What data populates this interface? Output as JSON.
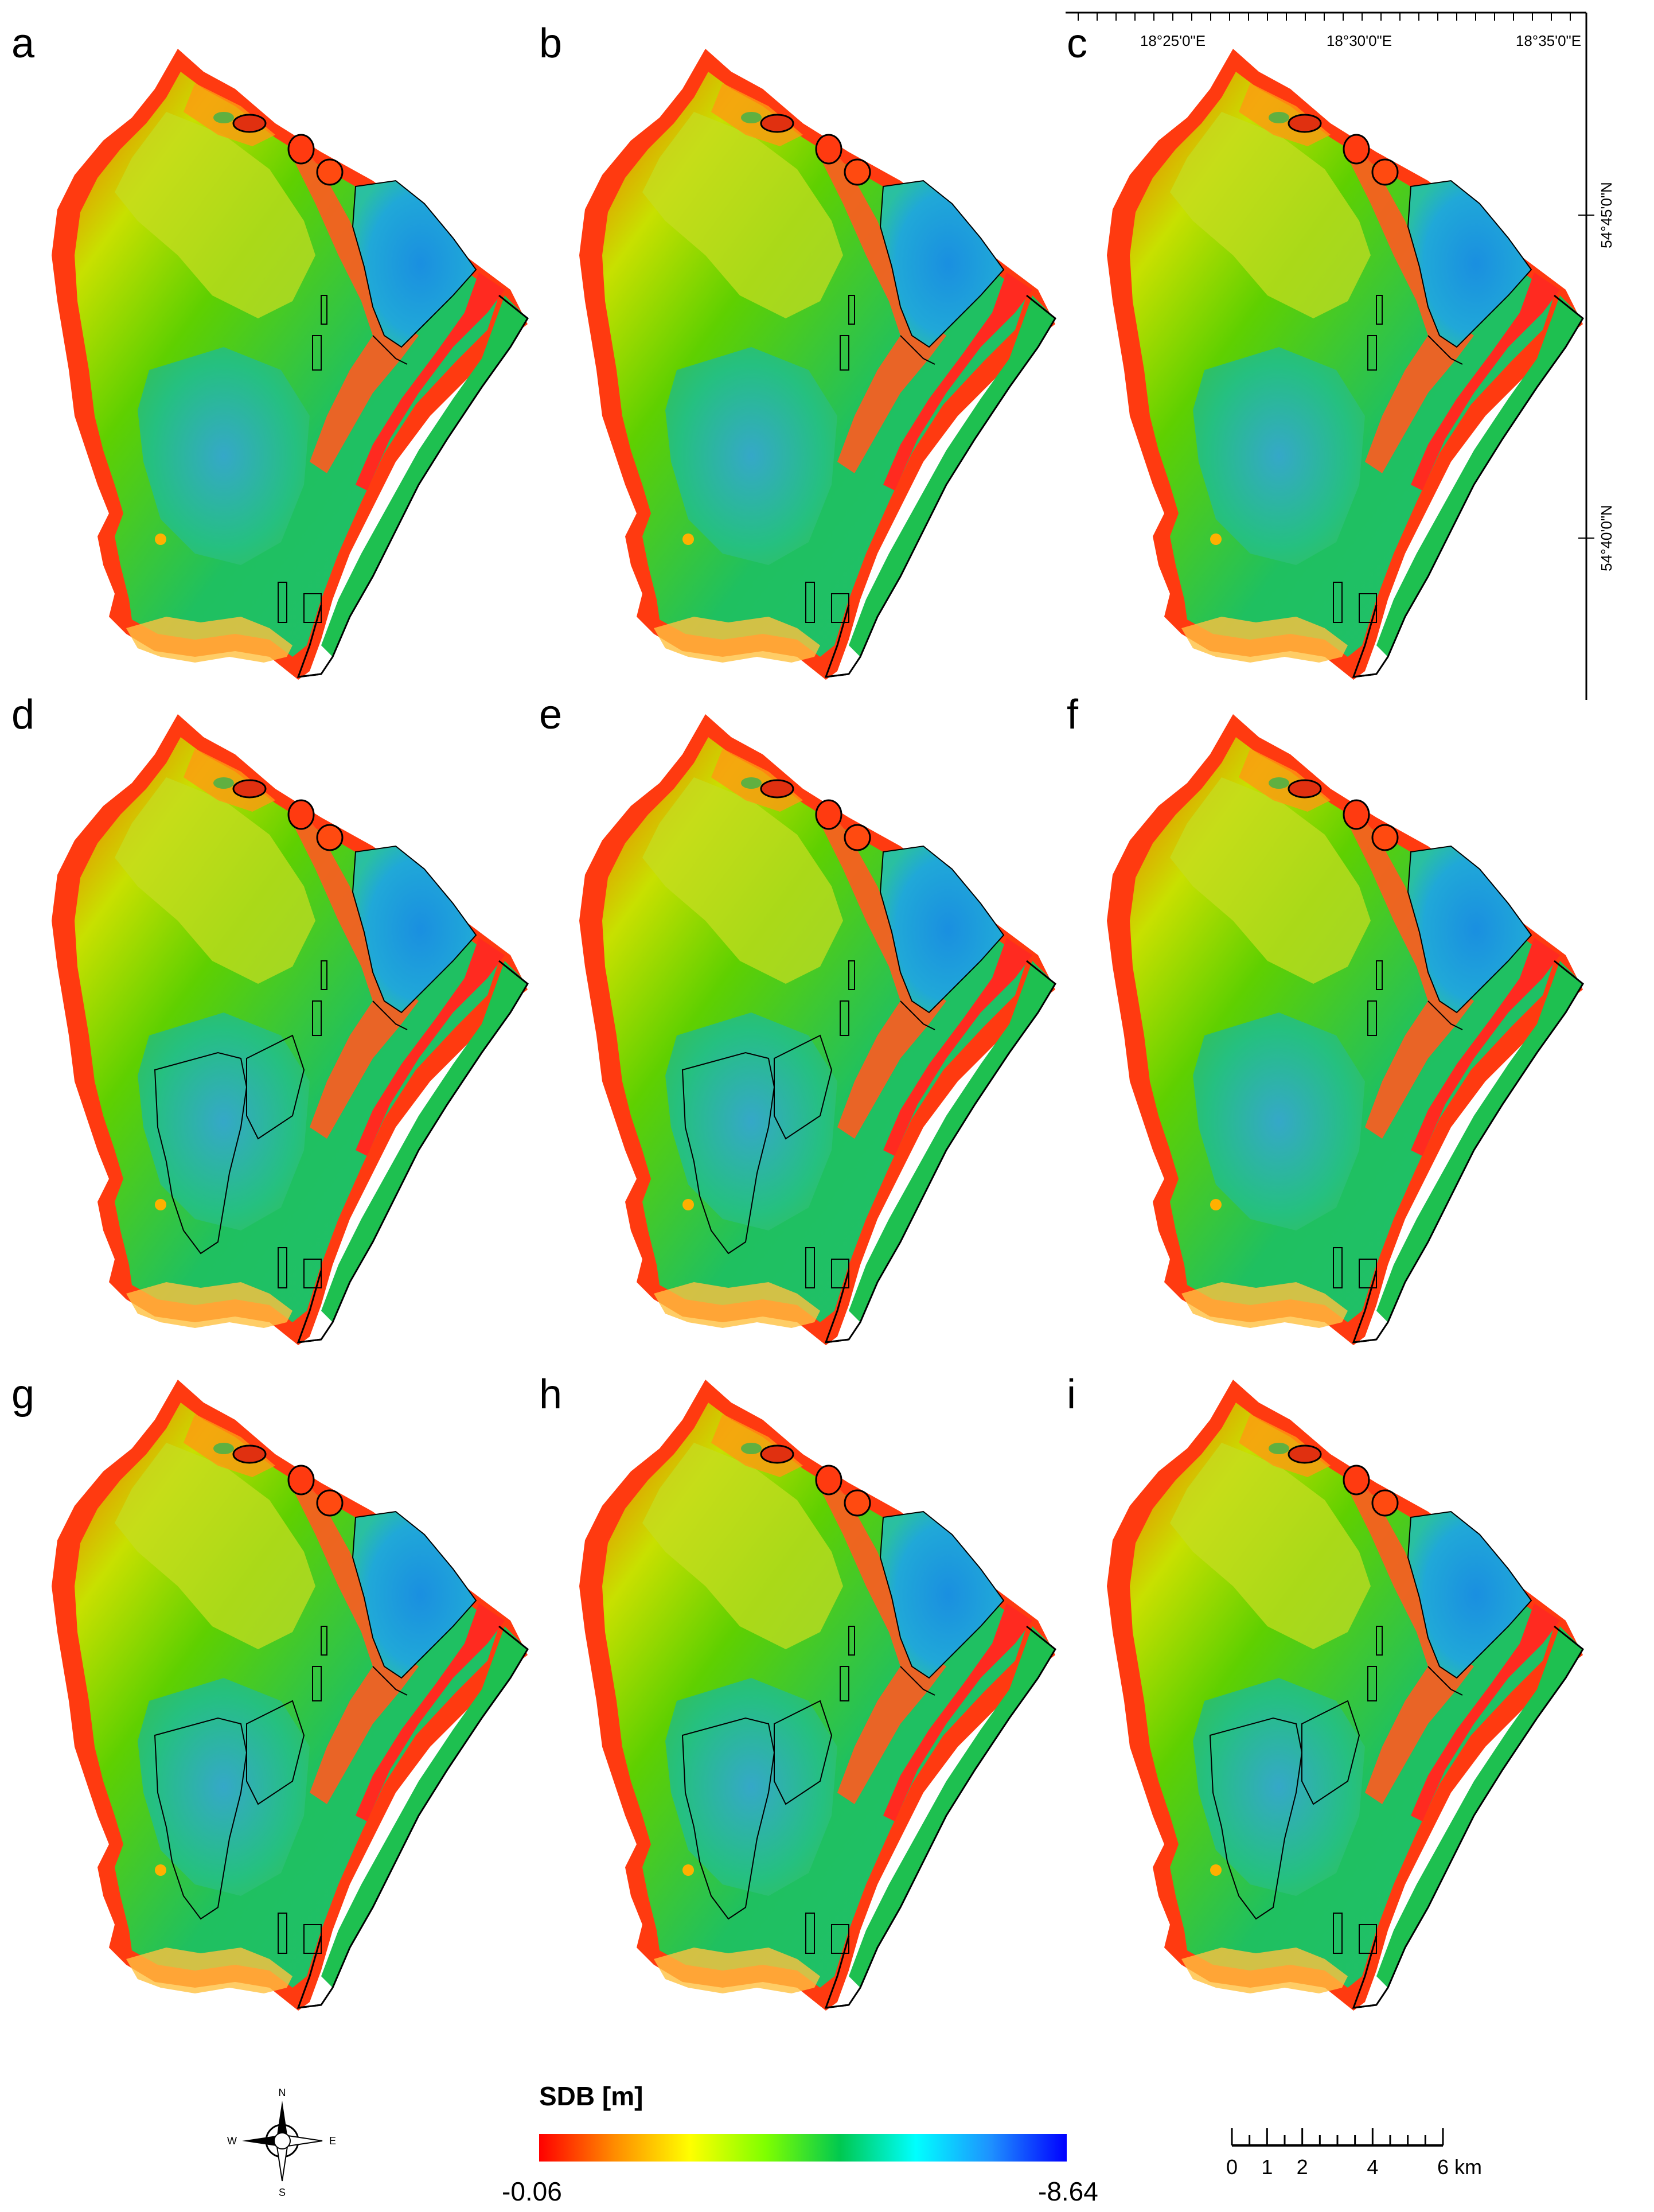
{
  "panels": [
    {
      "id": "a",
      "label": "a",
      "extra_polygons": false
    },
    {
      "id": "b",
      "label": "b",
      "extra_polygons": false
    },
    {
      "id": "c",
      "label": "c",
      "extra_polygons": false
    },
    {
      "id": "d",
      "label": "d",
      "extra_polygons": true
    },
    {
      "id": "e",
      "label": "e",
      "extra_polygons": true
    },
    {
      "id": "f",
      "label": "f",
      "extra_polygons": false
    },
    {
      "id": "g",
      "label": "g",
      "extra_polygons": true
    },
    {
      "id": "h",
      "label": "h",
      "extra_polygons": true
    },
    {
      "id": "i",
      "label": "i",
      "extra_polygons": true
    }
  ],
  "graticule": {
    "lon_labels": [
      "18°25'0\"E",
      "18°30'0\"E",
      "18°35'0\"E"
    ],
    "lat_labels": [
      "54°45'0\"N",
      "54°40'0\"N"
    ]
  },
  "legend": {
    "title": "SDB [m]",
    "min_label": "-0.06",
    "max_label": "-8.64",
    "colors": [
      "#ff0000",
      "#ff8c00",
      "#ffff00",
      "#7fff00",
      "#00c850",
      "#00ffff",
      "#1e90ff",
      "#0000ff"
    ]
  },
  "scale_bar": {
    "labels": [
      "0",
      "1",
      "2",
      "4",
      "6 km"
    ],
    "values": [
      0,
      1,
      2,
      4,
      6
    ]
  },
  "north_arrow": {
    "n": "N",
    "s": "S",
    "e": "E",
    "w": "W"
  }
}
